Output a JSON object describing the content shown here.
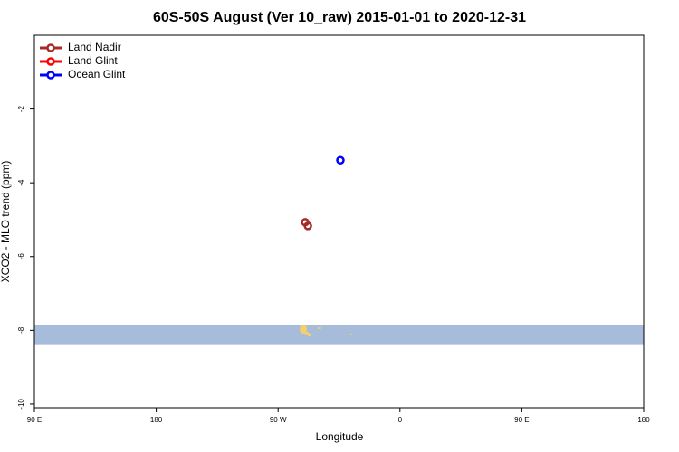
{
  "chart_data": {
    "type": "scatter",
    "title": "60S-50S August (Ver 10_raw)   2015-01-01 to 2020-12-31",
    "x_label": "Longitude",
    "y_label": "XCO2 - MLO trend (ppm)",
    "xlim": [
      90,
      540
    ],
    "ylim": [
      -10.1,
      0
    ],
    "xticks": [
      {
        "value": 90,
        "label": "90 E"
      },
      {
        "value": 180,
        "label": "180"
      },
      {
        "value": 270,
        "label": "90 W"
      },
      {
        "value": 360,
        "label": "0"
      },
      {
        "value": 450,
        "label": "90 E"
      },
      {
        "value": 540,
        "label": "180"
      }
    ],
    "yticks": [
      -2,
      -4,
      -6,
      -8,
      -10
    ],
    "band": {
      "ymin": -8.4,
      "ymax": -7.85,
      "color": "#a7bcdb"
    },
    "legend": "top-left",
    "series": [
      {
        "name": "Land Nadir",
        "color": "#a52a2a",
        "x": [
          290,
          292
        ],
        "values": [
          -5.07,
          -5.17
        ]
      },
      {
        "name": "Land Glint",
        "color": "#ff0000",
        "x": [],
        "values": []
      },
      {
        "name": "Ocean Glint",
        "color": "#0000ff",
        "x": [
          316
        ],
        "values": [
          -3.39
        ]
      }
    ]
  }
}
